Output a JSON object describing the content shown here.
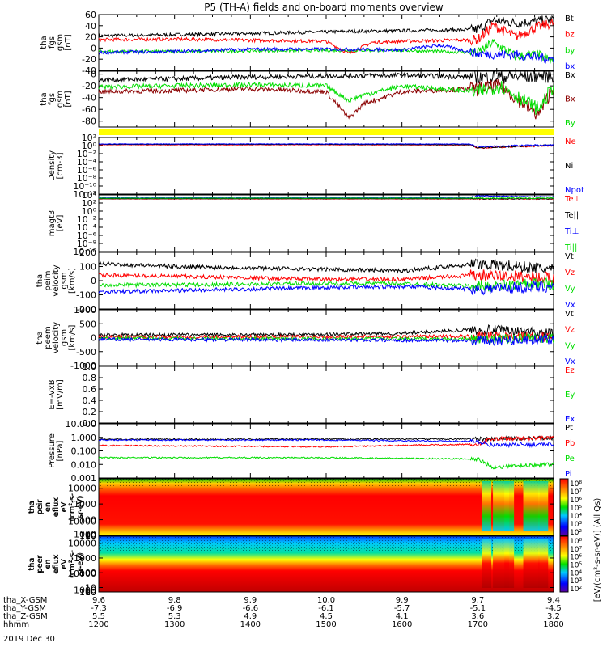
{
  "title": "P5 (TH-A) fields and on-board moments overview",
  "date_label": "2019 Dec 30",
  "chart_data": [
    {
      "type": "line",
      "ylabel": [
        "tha",
        "fgs",
        "gsm",
        "[nT]"
      ],
      "ylim": [
        -40,
        60
      ],
      "yticks": [
        {
          "v": 60,
          "t": "60"
        },
        {
          "v": 40,
          "t": "40"
        },
        {
          "v": 20,
          "t": "20"
        },
        {
          "v": 0,
          "t": "0"
        },
        {
          "v": -20,
          "t": "-20"
        },
        {
          "v": -40,
          "t": "-40"
        }
      ],
      "series": [
        {
          "name": "Bt",
          "color": "#000000",
          "x": [
            1200,
            1300,
            1400,
            1500,
            1530,
            1600,
            1700,
            1720,
            1750,
            1780,
            1800
          ],
          "values": [
            22,
            24,
            26,
            29,
            30,
            31,
            33,
            50,
            45,
            48,
            52
          ]
        },
        {
          "name": "bz",
          "color": "#ff0000",
          "x": [
            1200,
            1300,
            1400,
            1500,
            1530,
            1560,
            1600,
            1700,
            1720,
            1750,
            1780,
            1800
          ],
          "values": [
            15,
            16,
            14,
            12,
            -10,
            10,
            12,
            15,
            40,
            20,
            38,
            45
          ]
        },
        {
          "name": "by",
          "color": "#00dd00",
          "x": [
            1200,
            1300,
            1400,
            1500,
            1600,
            1700,
            1720,
            1750,
            1780,
            1800
          ],
          "values": [
            -6,
            -6,
            -5,
            -4,
            -4,
            -8,
            10,
            -15,
            -12,
            -25
          ]
        },
        {
          "name": "bx",
          "color": "#0000ff",
          "x": [
            1200,
            1300,
            1400,
            1500,
            1600,
            1650,
            1700,
            1750,
            1800
          ],
          "values": [
            -8,
            -6,
            -2,
            -2,
            -3,
            5,
            -10,
            -12,
            -20
          ]
        }
      ]
    },
    {
      "type": "line",
      "ylabel": [
        "tha",
        "fgs",
        "gsm",
        "[nT]"
      ],
      "ylim": [
        -90,
        5
      ],
      "yticks": [
        {
          "v": 0,
          "t": "0"
        },
        {
          "v": -20,
          "t": "-20"
        },
        {
          "v": -40,
          "t": "-40"
        },
        {
          "v": -60,
          "t": "-60"
        },
        {
          "v": -80,
          "t": "-80"
        }
      ],
      "series": [
        {
          "name": "Bx",
          "color": "#000000",
          "x": [
            1200,
            1300,
            1400,
            1500,
            1600,
            1700,
            1800
          ],
          "values": [
            -10,
            -8,
            -5,
            -3,
            -2,
            -5,
            -3
          ]
        },
        {
          "name": "Bx",
          "color": "#8b0000",
          "x": [
            1200,
            1300,
            1400,
            1500,
            1530,
            1550,
            1600,
            1700,
            1730,
            1780,
            1800
          ],
          "values": [
            -30,
            -28,
            -25,
            -30,
            -75,
            -50,
            -30,
            -25,
            -20,
            -70,
            -20
          ]
        },
        {
          "name": "By",
          "color": "#00dd00",
          "x": [
            1200,
            1300,
            1400,
            1500,
            1530,
            1550,
            1600,
            1700,
            1730,
            1780,
            1800
          ],
          "values": [
            -22,
            -20,
            -18,
            -20,
            -45,
            -35,
            -20,
            -30,
            -20,
            -60,
            -20
          ]
        }
      ]
    },
    {
      "type": "line",
      "ylabel": [
        "Density",
        "[cm-3]"
      ],
      "ylim": [
        -12,
        2
      ],
      "yticks": [
        {
          "v": 2,
          "t": "10²"
        },
        {
          "v": 0,
          "t": "10⁰"
        },
        {
          "v": -2,
          "t": "10⁻²"
        },
        {
          "v": -4,
          "t": "10⁻⁴"
        },
        {
          "v": -6,
          "t": "10⁻⁶"
        },
        {
          "v": -8,
          "t": "10⁻⁸"
        },
        {
          "v": -10,
          "t": "10⁻¹⁰"
        },
        {
          "v": -12,
          "t": "10⁻¹²"
        }
      ],
      "series": [
        {
          "name": "Ne",
          "color": "#ff0000",
          "x": [
            1200,
            1500,
            1690,
            1700,
            1750,
            1800
          ],
          "values": [
            0.2,
            0.2,
            0.15,
            -0.6,
            -0.3,
            0.0
          ]
        },
        {
          "name": "Ni",
          "color": "#000000",
          "x": [
            1200,
            1500,
            1690,
            1700,
            1750,
            1800
          ],
          "values": [
            0.3,
            0.3,
            0.2,
            -0.5,
            -0.2,
            0.1
          ]
        },
        {
          "name": "Npot",
          "color": "#0000ff",
          "x": [
            1200,
            1690,
            1700,
            1750,
            1800
          ],
          "values": [
            0.4,
            0.4,
            -0.3,
            0.0,
            0.2
          ]
        }
      ]
    },
    {
      "type": "line",
      "ylabel": [
        "magt3",
        "[eV]"
      ],
      "ylim": [
        -10,
        4
      ],
      "yticks": [
        {
          "v": 4,
          "t": "10⁴"
        },
        {
          "v": 2,
          "t": "10²"
        },
        {
          "v": 0,
          "t": "10⁰"
        },
        {
          "v": -2,
          "t": "10⁻²"
        },
        {
          "v": -4,
          "t": "10⁻⁴"
        },
        {
          "v": -6,
          "t": "10⁻⁶"
        },
        {
          "v": -8,
          "t": "10⁻⁸"
        },
        {
          "v": -10,
          "t": "10⁻¹⁰"
        }
      ],
      "series": [
        {
          "name": "Te⊥",
          "color": "#ff0000",
          "x": [
            1200,
            1700,
            1800
          ],
          "values": [
            3.0,
            3.0,
            3.0
          ]
        },
        {
          "name": "Te||",
          "color": "#000000",
          "x": [
            1200,
            1700,
            1800
          ],
          "values": [
            3.05,
            3.05,
            3.05
          ]
        },
        {
          "name": "Ti⊥",
          "color": "#0000ff",
          "x": [
            1200,
            1690,
            1700,
            1750,
            1800
          ],
          "values": [
            3.4,
            3.4,
            3.8,
            3.6,
            3.5
          ]
        },
        {
          "name": "Ti||",
          "color": "#00dd00",
          "x": [
            1200,
            1700,
            1800
          ],
          "values": [
            3.2,
            3.2,
            3.2
          ]
        }
      ]
    },
    {
      "type": "line",
      "ylabel": [
        "tha",
        "peim",
        "velocity",
        "gsm",
        "[km/s]"
      ],
      "ylim": [
        -200,
        200
      ],
      "yticks": [
        {
          "v": 200,
          "t": "200"
        },
        {
          "v": 100,
          "t": "100"
        },
        {
          "v": 0,
          "t": "0"
        },
        {
          "v": -100,
          "t": "-100"
        },
        {
          "v": -200,
          "t": "-200"
        }
      ],
      "series": [
        {
          "name": "Vt",
          "color": "#000000",
          "x": [
            1200,
            1300,
            1400,
            1500,
            1600,
            1700,
            1800
          ],
          "values": [
            120,
            100,
            90,
            80,
            70,
            120,
            80
          ]
        },
        {
          "name": "Vz",
          "color": "#ff0000",
          "x": [
            1200,
            1300,
            1400,
            1500,
            1600,
            1700,
            1800
          ],
          "values": [
            40,
            30,
            20,
            10,
            10,
            40,
            20
          ]
        },
        {
          "name": "Vy",
          "color": "#00dd00",
          "x": [
            1200,
            1300,
            1400,
            1500,
            1600,
            1700,
            1800
          ],
          "values": [
            -30,
            -30,
            -25,
            -20,
            -20,
            -40,
            -20
          ]
        },
        {
          "name": "Vx",
          "color": "#0000ff",
          "x": [
            1200,
            1300,
            1400,
            1500,
            1600,
            1700,
            1800
          ],
          "values": [
            -80,
            -70,
            -60,
            -50,
            -40,
            -60,
            -40
          ]
        }
      ]
    },
    {
      "type": "line",
      "ylabel": [
        "tha",
        "peem",
        "velocity",
        "gsm",
        "[km/s]"
      ],
      "ylim": [
        -1000,
        1000
      ],
      "yticks": [
        {
          "v": 1000,
          "t": "1000"
        },
        {
          "v": 500,
          "t": "500"
        },
        {
          "v": 0,
          "t": "0"
        },
        {
          "v": -500,
          "t": "-500"
        },
        {
          "v": -1000,
          "t": "-1000"
        }
      ],
      "series": [
        {
          "name": "Vt",
          "color": "#000000",
          "x": [
            1200,
            1400,
            1600,
            1700,
            1800
          ],
          "values": [
            100,
            100,
            150,
            300,
            150
          ]
        },
        {
          "name": "Vz",
          "color": "#ff0000",
          "x": [
            1200,
            1700,
            1800
          ],
          "values": [
            20,
            50,
            20
          ]
        },
        {
          "name": "Vy",
          "color": "#00dd00",
          "x": [
            1200,
            1700,
            1800
          ],
          "values": [
            -20,
            -50,
            -20
          ]
        },
        {
          "name": "Vx",
          "color": "#0000ff",
          "x": [
            1200,
            1700,
            1800
          ],
          "values": [
            -60,
            -100,
            -60
          ]
        }
      ]
    },
    {
      "type": "line",
      "ylabel": [
        "E=-VxB",
        "[mV/m]"
      ],
      "ylim": [
        0,
        1
      ],
      "yticks": [
        {
          "v": 1.0,
          "t": "1.0"
        },
        {
          "v": 0.8,
          "t": "0.8"
        },
        {
          "v": 0.6,
          "t": "0.6"
        },
        {
          "v": 0.4,
          "t": "0.4"
        },
        {
          "v": 0.2,
          "t": "0.2"
        },
        {
          "v": 0.0,
          "t": "0.0"
        }
      ],
      "series": [
        {
          "name": "Ez",
          "color": "#ff0000",
          "x": [],
          "values": []
        },
        {
          "name": "Ey",
          "color": "#00dd00",
          "x": [],
          "values": []
        },
        {
          "name": "Ex",
          "color": "#0000ff",
          "x": [],
          "values": []
        }
      ]
    },
    {
      "type": "line",
      "ylabel": [
        "Pressure",
        "[nPa]"
      ],
      "ylim": [
        -3,
        1
      ],
      "yticks": [
        {
          "v": 1,
          "t": "10.000"
        },
        {
          "v": 0,
          "t": "1.000"
        },
        {
          "v": -1,
          "t": "0.100"
        },
        {
          "v": -2,
          "t": "0.010"
        },
        {
          "v": -3,
          "t": "0.001"
        }
      ],
      "series": [
        {
          "name": "Pt",
          "color": "#000000",
          "x": [
            1200,
            1700,
            1800
          ],
          "values": [
            -0.15,
            -0.12,
            -0.05
          ]
        },
        {
          "name": "Pb",
          "color": "#ff0000",
          "x": [
            1200,
            1500,
            1700,
            1720,
            1800
          ],
          "values": [
            -0.6,
            -0.7,
            -0.5,
            -0.1,
            -0.05
          ]
        },
        {
          "name": "Pe",
          "color": "#00dd00",
          "x": [
            1200,
            1500,
            1700,
            1720,
            1800
          ],
          "values": [
            -1.5,
            -1.5,
            -1.6,
            -2.2,
            -2.0
          ]
        },
        {
          "name": "Pi",
          "color": "#0000ff",
          "x": [
            1200,
            1500,
            1700,
            1720,
            1800
          ],
          "values": [
            -0.2,
            -0.2,
            -0.3,
            -0.6,
            -0.5
          ]
        }
      ]
    },
    {
      "type": "heatmap",
      "ylabel": [
        "tha",
        "peir",
        "en",
        "eflux",
        "eV",
        "(cm²-s-",
        "sr-eV)"
      ],
      "ylim": [
        10,
        40000
      ],
      "yticks": [
        {
          "v": 10000,
          "t": "10000"
        },
        {
          "v": 1000,
          "t": "1000"
        },
        {
          "v": 100,
          "t": "100"
        },
        {
          "v": 10,
          "t": "10"
        }
      ]
    },
    {
      "type": "heatmap",
      "ylabel": [
        "tha",
        "peer",
        "en",
        "eflux",
        "eV",
        "(cm²-s-",
        "sr-eV)"
      ],
      "ylim": [
        5,
        30000
      ],
      "yticks": [
        {
          "v": 10000,
          "t": "10000"
        },
        {
          "v": 1000,
          "t": "1000"
        },
        {
          "v": 100,
          "t": "100"
        },
        {
          "v": 10,
          "t": "10"
        }
      ]
    }
  ],
  "colorbar": {
    "label": "[eV/(cm²-s-sr-eV)] (All Qs)",
    "upper_ticks": [
      "10⁸",
      "10⁷",
      "10⁶",
      "10⁵",
      "10⁴",
      "10³",
      "10²"
    ],
    "lower_ticks": [
      "10⁸",
      "10⁷",
      "10⁶",
      "10⁵",
      "10⁴",
      "10³",
      "10²"
    ]
  },
  "axis": {
    "row_labels": [
      "tha_X-GSM",
      "tha_Y-GSM",
      "tha_Z-GSM",
      "hhmm"
    ],
    "x_ticks": [
      {
        "x": 1200,
        "rows": [
          "9.6",
          "-7.3",
          "5.5",
          "1200"
        ]
      },
      {
        "x": 1300,
        "rows": [
          "9.8",
          "-6.9",
          "5.3",
          "1300"
        ]
      },
      {
        "x": 1400,
        "rows": [
          "9.9",
          "-6.6",
          "4.9",
          "1400"
        ]
      },
      {
        "x": 1500,
        "rows": [
          "10.0",
          "-6.1",
          "4.5",
          "1500"
        ]
      },
      {
        "x": 1600,
        "rows": [
          "9.9",
          "-5.7",
          "4.1",
          "1600"
        ]
      },
      {
        "x": 1700,
        "rows": [
          "9.7",
          "-5.1",
          "3.6",
          "1700"
        ]
      },
      {
        "x": 1800,
        "rows": [
          "9.4",
          "-4.5",
          "3.2",
          "1800"
        ]
      }
    ]
  }
}
